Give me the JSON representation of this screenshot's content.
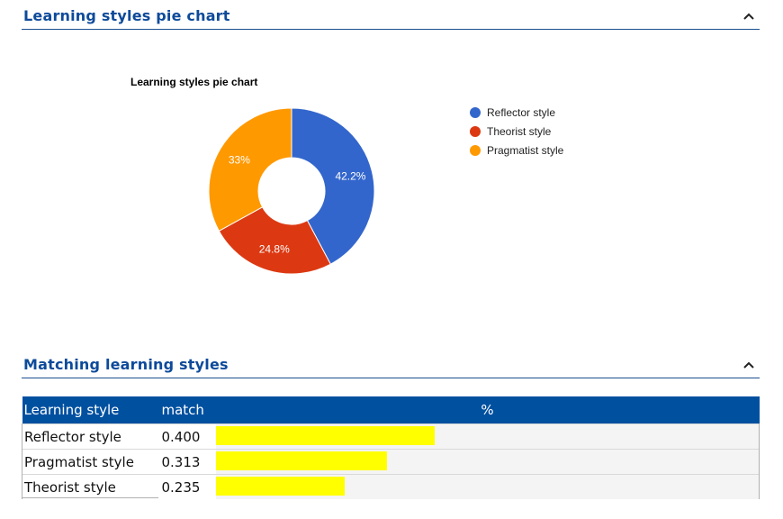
{
  "sections": {
    "pie_section_title": "Learning styles pie chart",
    "match_section_title": "Matching learning styles"
  },
  "chart_data": {
    "type": "pie",
    "title": "Learning styles pie chart",
    "donut": true,
    "legend_position": "right",
    "slices": [
      {
        "label": "Reflector style",
        "value": 42.2,
        "display": "42.2%",
        "color": "#3366cc"
      },
      {
        "label": "Theorist style",
        "value": 24.8,
        "display": "24.8%",
        "color": "#dc3912"
      },
      {
        "label": "Pragmatist style",
        "value": 33.0,
        "display": "33%",
        "color": "#ff9900"
      }
    ],
    "legend_order": [
      "Reflector style",
      "Theorist style",
      "Pragmatist style"
    ]
  },
  "table": {
    "headers": {
      "style": "Learning style",
      "match": "match",
      "percent": "%"
    },
    "rows": [
      {
        "style": "Reflector style",
        "match": "0.400",
        "fraction": 0.4
      },
      {
        "style": "Pragmatist style",
        "match": "0.313",
        "fraction": 0.313
      },
      {
        "style": "Theorist style",
        "match": "0.235",
        "fraction": 0.235
      }
    ],
    "bar_color": "#ffff00"
  },
  "colors": {
    "header_text": "#0d4a9a",
    "table_header_bg": "#0050a0"
  },
  "icons": {
    "collapse": "chevron-up-icon"
  }
}
